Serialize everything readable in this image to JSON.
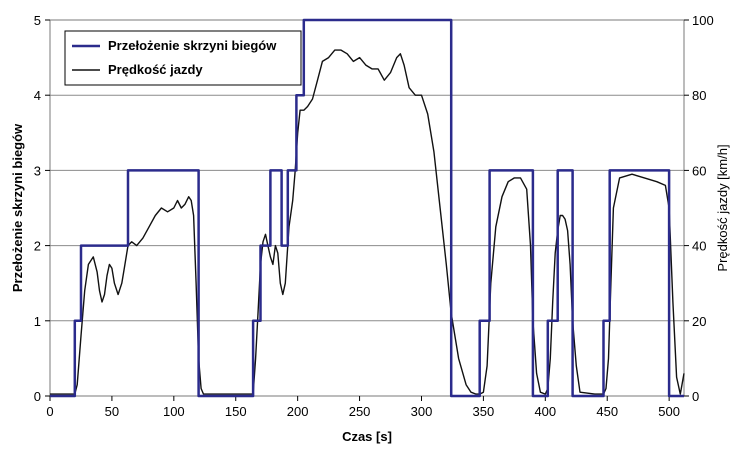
{
  "chart_data": {
    "type": "line",
    "xlabel": "Czas [s]",
    "ylabel_left": "Przełożenie skrzyni biegów",
    "ylabel_right": "Prędkość jazdy [km/h]",
    "xlim": [
      0,
      512
    ],
    "ylim_left": [
      0,
      5
    ],
    "ylim_right": [
      0,
      100
    ],
    "x_ticks": [
      0,
      50,
      100,
      150,
      200,
      250,
      300,
      350,
      400,
      450,
      500
    ],
    "y_left_ticks": [
      0,
      1,
      2,
      3,
      4,
      5
    ],
    "y_right_ticks": [
      0,
      20,
      40,
      60,
      80,
      100
    ],
    "grid": "horizontal",
    "legend_position": "top-left",
    "colors": {
      "gear": "#2b2b8c",
      "speed": "#111111",
      "grid": "#8c8c8c"
    },
    "series": [
      {
        "name": "Przełożenie skrzyni biegów",
        "axis": "left",
        "step": true,
        "x": [
          0,
          20,
          20,
          25,
          25,
          63,
          63,
          120,
          120,
          164,
          164,
          170,
          170,
          178,
          178,
          187,
          187,
          192,
          192,
          199,
          199,
          205,
          205,
          324,
          324,
          347,
          347,
          355,
          355,
          390,
          390,
          402,
          402,
          410,
          410,
          422,
          422,
          447,
          447,
          452,
          452,
          500,
          500,
          512
        ],
        "values": [
          0,
          0,
          1,
          1,
          2,
          2,
          3,
          3,
          0,
          0,
          1,
          1,
          2,
          2,
          3,
          3,
          2,
          2,
          3,
          3,
          4,
          4,
          5,
          5,
          0,
          0,
          1,
          1,
          3,
          3,
          0,
          0,
          1,
          1,
          3,
          3,
          0,
          0,
          1,
          1,
          3,
          3,
          0,
          0
        ]
      },
      {
        "name": "Prędkość jazdy",
        "axis": "right",
        "x": [
          0,
          20,
          22,
          25,
          28,
          31,
          35,
          38,
          40,
          42,
          44,
          46,
          48,
          50,
          52,
          55,
          58,
          60,
          63,
          66,
          70,
          75,
          80,
          85,
          90,
          95,
          100,
          103,
          106,
          109,
          112,
          114,
          116,
          118,
          120,
          122,
          124,
          164,
          166,
          168,
          170,
          172,
          174,
          176,
          178,
          180,
          182,
          184,
          186,
          188,
          190,
          193,
          196,
          198,
          200,
          202,
          205,
          208,
          212,
          216,
          220,
          225,
          230,
          235,
          240,
          245,
          250,
          255,
          260,
          265,
          270,
          275,
          280,
          283,
          286,
          290,
          295,
          300,
          305,
          310,
          315,
          320,
          324,
          330,
          336,
          340,
          344,
          347,
          350,
          353,
          356,
          360,
          365,
          370,
          375,
          380,
          385,
          388,
          390,
          393,
          396,
          400,
          402,
          404,
          406,
          408,
          410,
          412,
          414,
          416,
          418,
          420,
          422,
          425,
          428,
          440,
          445,
          447,
          449,
          451,
          453,
          455,
          460,
          470,
          480,
          490,
          497,
          500,
          503,
          506,
          509,
          512
        ],
        "values": [
          0.5,
          0.5,
          3,
          16,
          28,
          35,
          37,
          33,
          28,
          25,
          27,
          32,
          35,
          34,
          30,
          27,
          30,
          34,
          40,
          41,
          40,
          42,
          45,
          48,
          50,
          49,
          50,
          52,
          50,
          51,
          53,
          52,
          48,
          30,
          10,
          2,
          0.5,
          0.5,
          10,
          22,
          35,
          41,
          43,
          40,
          37,
          35,
          40,
          38,
          30,
          27,
          30,
          45,
          52,
          60,
          70,
          76,
          76,
          77,
          79,
          84,
          89,
          90,
          92,
          92,
          91,
          89,
          90,
          88,
          87,
          87,
          84,
          86,
          90,
          91,
          88,
          82,
          80,
          80,
          75,
          65,
          50,
          35,
          22,
          10,
          3,
          1,
          0.5,
          0.5,
          1,
          8,
          30,
          45,
          53,
          57,
          58,
          58,
          55,
          40,
          20,
          6,
          1,
          0.5,
          2,
          10,
          25,
          38,
          44,
          48,
          48,
          47,
          44,
          35,
          20,
          8,
          1,
          0.5,
          0.5,
          0.5,
          2,
          10,
          30,
          50,
          58,
          59,
          58,
          57,
          56,
          50,
          25,
          5,
          0.5,
          6
        ]
      }
    ]
  }
}
